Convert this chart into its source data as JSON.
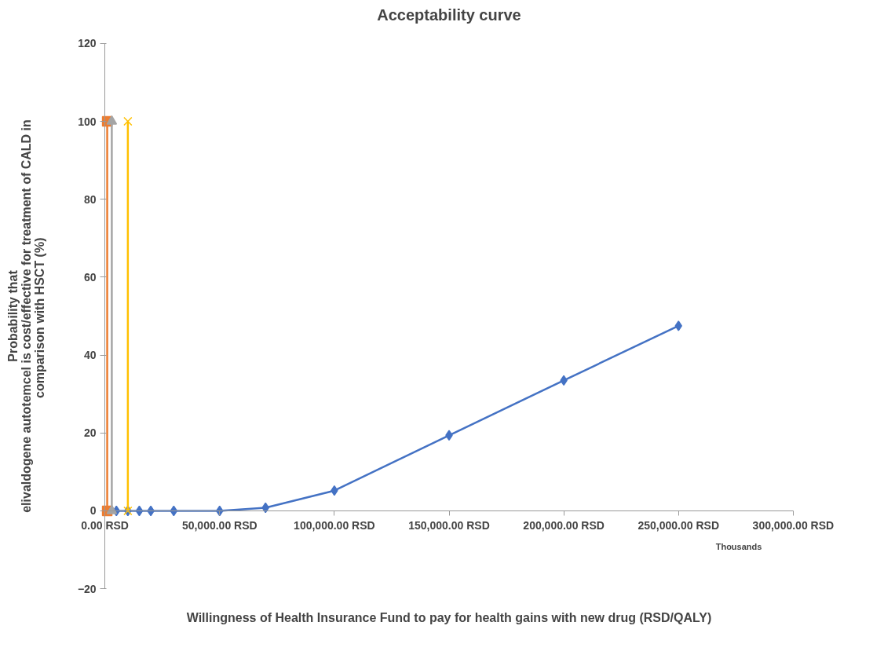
{
  "chart_data": {
    "type": "line",
    "title": "Acceptability curve",
    "xlabel": "Willingness of Health Insurance Fund to pay for health gains with new drug (RSD/QALY)",
    "ylabel": "Probability that\nelivaldogene autotemcel is cost/effective for treatment of CALD in\ncomparison with HSCT  (%)",
    "annotations": [
      "Thousands"
    ],
    "series": [
      {
        "color": "#4472c4",
        "marker": "diamond",
        "x": [
          5000,
          10000,
          15000,
          20000,
          30000,
          50000,
          70000,
          100000,
          150000,
          200000,
          250000
        ],
        "values": [
          0,
          0,
          0,
          0,
          0,
          0,
          0.8,
          5.2,
          19.4,
          33.5,
          47.5
        ]
      },
      {
        "color": "#ed7d31",
        "marker": "square",
        "x": [
          1000,
          1000
        ],
        "values": [
          0,
          100
        ]
      },
      {
        "color": "#a5a5a5",
        "marker": "triangle",
        "x": [
          3000,
          3000
        ],
        "values": [
          0,
          100
        ]
      },
      {
        "color": "#ffc000",
        "marker": "cross",
        "x": [
          10000,
          10000
        ],
        "values": [
          0,
          100
        ]
      }
    ],
    "xlim": [
      0,
      300000
    ],
    "xticks": [
      {
        "value": 0,
        "label": "0.00 RSD"
      },
      {
        "value": 50000,
        "label": "50,000.00 RSD"
      },
      {
        "value": 100000,
        "label": "100,000.00 RSD"
      },
      {
        "value": 150000,
        "label": "150,000.00 RSD"
      },
      {
        "value": 200000,
        "label": "200,000.00 RSD"
      },
      {
        "value": 250000,
        "label": "250,000.00 RSD"
      },
      {
        "value": 300000,
        "label": "300,000.00 RSD"
      }
    ],
    "ylim": [
      -20,
      120
    ],
    "yticks": [
      -20,
      0,
      20,
      40,
      60,
      80,
      100,
      120
    ],
    "grid": false
  }
}
